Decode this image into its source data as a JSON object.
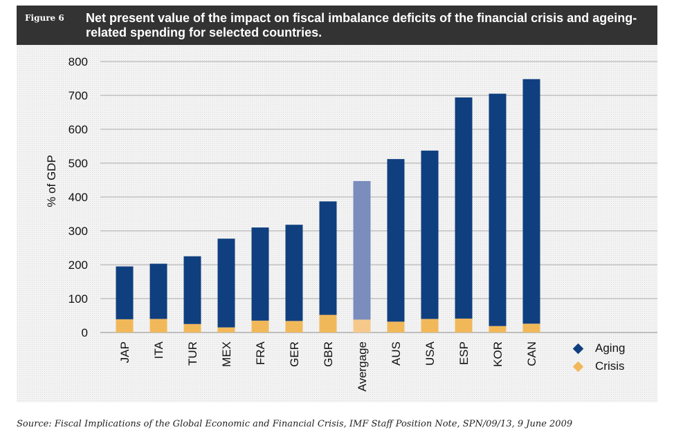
{
  "figure": {
    "label": "Figure 6",
    "title": "Net present value of the impact on fiscal imbalance deficits of the financial crisis and ageing-related spending for selected countries."
  },
  "source": "Source: Fiscal Implications of the Global Economic and Financial Crisis, IMF Staff Position Note, SPN/09/13, 9 June 2009",
  "legend": [
    {
      "name": "Aging",
      "color": "#0f3f7f",
      "shape": "diamond"
    },
    {
      "name": "Crisis",
      "color": "#f1b85a",
      "shape": "diamond"
    }
  ],
  "chart_data": {
    "type": "bar",
    "stacked": true,
    "title": "Net present value of the impact on fiscal imbalance deficits of the financial crisis and ageing-related spending for selected countries.",
    "xlabel": "",
    "ylabel": "% of GDP",
    "ylim": [
      0,
      800
    ],
    "yticks": [
      0,
      100,
      200,
      300,
      400,
      500,
      600,
      700,
      800
    ],
    "grid": true,
    "legend_position": "bottom-right",
    "categories": [
      "JAP",
      "ITA",
      "TUR",
      "MEX",
      "FRA",
      "GER",
      "GBR",
      "Avergage",
      "AUS",
      "USA",
      "ESP",
      "KOR",
      "CAN"
    ],
    "highlight_category": "Avergage",
    "highlight_colors": {
      "Aging": "#7a8dbd",
      "Crisis": "#f6c98b"
    },
    "series": [
      {
        "name": "Crisis",
        "color": "#f1b85a",
        "values": [
          39,
          40,
          25,
          15,
          35,
          34,
          52,
          38,
          32,
          40,
          41,
          19,
          26
        ]
      },
      {
        "name": "Aging",
        "color": "#0f3f7f",
        "values": [
          156,
          163,
          200,
          262,
          275,
          284,
          335,
          409,
          480,
          497,
          653,
          686,
          722
        ]
      }
    ]
  }
}
